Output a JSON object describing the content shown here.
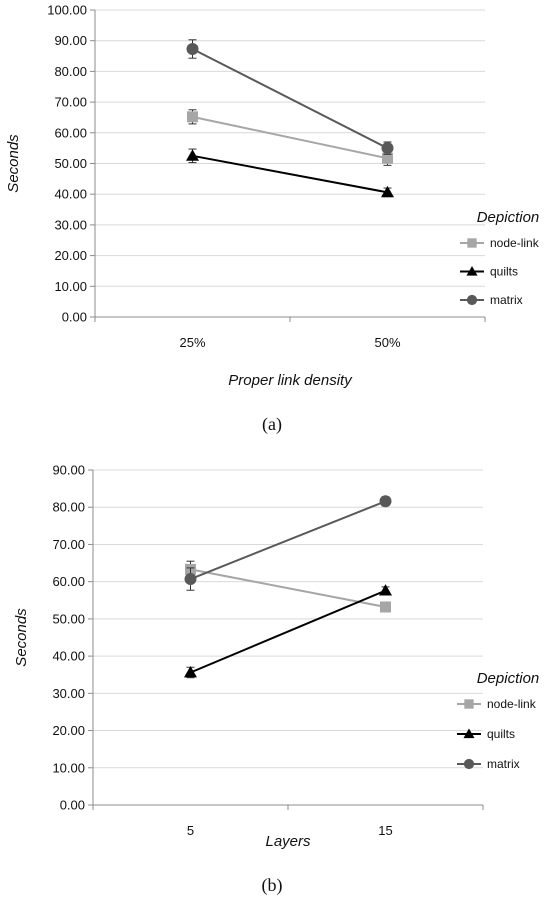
{
  "chart_data": [
    {
      "type": "line",
      "caption": "(a)",
      "xlabel": "Proper link density",
      "ylabel": "Seconds",
      "categories": [
        "25%",
        "50%"
      ],
      "ylim": [
        0,
        100
      ],
      "yticks": [
        "0.00",
        "10.00",
        "20.00",
        "30.00",
        "40.00",
        "50.00",
        "60.00",
        "70.00",
        "80.00",
        "90.00",
        "100.00"
      ],
      "grid": true,
      "legend": {
        "title": "Depiction",
        "placement": "right"
      },
      "series": [
        {
          "name": "node-link",
          "values": [
            65.2,
            51.7
          ],
          "error": [
            2.3,
            2.3
          ],
          "color": "#a6a6a6",
          "marker": "square"
        },
        {
          "name": "quilts",
          "values": [
            52.5,
            40.6
          ],
          "error": [
            2.2,
            1.4
          ],
          "color": "#000000",
          "marker": "triangle"
        },
        {
          "name": "matrix",
          "values": [
            87.3,
            55.0
          ],
          "error": [
            3.0,
            2.0
          ],
          "color": "#595959",
          "marker": "circle"
        }
      ]
    },
    {
      "type": "line",
      "caption": "(b)",
      "xlabel": "Layers",
      "ylabel": "Seconds",
      "categories": [
        "5",
        "15"
      ],
      "ylim": [
        0,
        90
      ],
      "yticks": [
        "0.00",
        "10.00",
        "20.00",
        "30.00",
        "40.00",
        "50.00",
        "60.00",
        "70.00",
        "80.00",
        "90.00"
      ],
      "grid": true,
      "legend": {
        "title": "Depiction",
        "placement": "right"
      },
      "series": [
        {
          "name": "node-link",
          "values": [
            63.3,
            53.2
          ],
          "error": [
            2.2,
            1.0
          ],
          "color": "#a6a6a6",
          "marker": "square"
        },
        {
          "name": "quilts",
          "values": [
            35.6,
            57.6
          ],
          "error": [
            1.4,
            1.0
          ],
          "color": "#000000",
          "marker": "triangle"
        },
        {
          "name": "matrix",
          "values": [
            60.7,
            81.6
          ],
          "error": [
            3.0,
            1.2
          ],
          "color": "#595959",
          "marker": "circle"
        }
      ]
    }
  ]
}
